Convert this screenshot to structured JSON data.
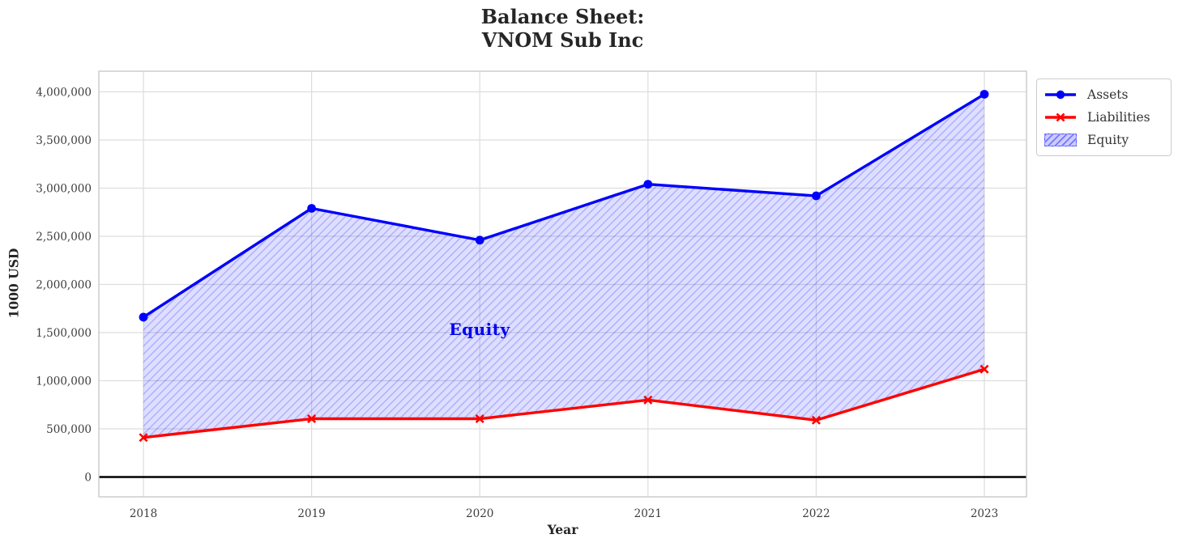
{
  "header": {
    "title_line1": "Balance Sheet:",
    "title_line2": "VNOM Sub Inc"
  },
  "chart_data": {
    "type": "line",
    "title": "Balance Sheet:\nVNOM Sub Inc",
    "xlabel": "Year",
    "ylabel": "1000 USD",
    "x": [
      2018,
      2019,
      2020,
      2021,
      2022,
      2023
    ],
    "x_tick_labels": [
      "2018",
      "2019",
      "2020",
      "2021",
      "2022",
      "2023"
    ],
    "series": [
      {
        "name": "Assets",
        "color": "#0000ff",
        "marker": "circle",
        "values": [
          1660000,
          2790000,
          2460000,
          3040000,
          2920000,
          3975000
        ]
      },
      {
        "name": "Liabilities",
        "color": "#ff0000",
        "marker": "x",
        "values": [
          410000,
          605000,
          605000,
          800000,
          590000,
          1120000
        ]
      }
    ],
    "area": {
      "name": "Equity",
      "between": [
        "Assets",
        "Liabilities"
      ],
      "label": "Equity",
      "label_x": 2020,
      "label_y": 1520000,
      "fill": "rgba(0,0,255,0.13)",
      "hatch": "//",
      "hatch_color": "rgba(0,0,255,0.22)"
    },
    "yticks": [
      0,
      500000,
      1000000,
      1500000,
      2000000,
      2500000,
      3000000,
      3500000,
      4000000
    ],
    "y_tick_labels": [
      "0",
      "500,000",
      "1,000,000",
      "1,500,000",
      "2,000,000",
      "2,500,000",
      "3,000,000",
      "3,500,000",
      "4,000,000"
    ],
    "ylim": [
      0,
      4000000
    ],
    "grid": true,
    "zero_line": true,
    "legend_position": "outside-top-right",
    "colors": {
      "assets": "#0000ff",
      "liabilities": "#ff0000",
      "grid": "#dddddd",
      "plot_border": "#c9c9c9",
      "zero_line": "#000000",
      "tick_text": "#3c3c3c",
      "title_text": "#262626",
      "annotation_text": "#0000ee"
    }
  }
}
